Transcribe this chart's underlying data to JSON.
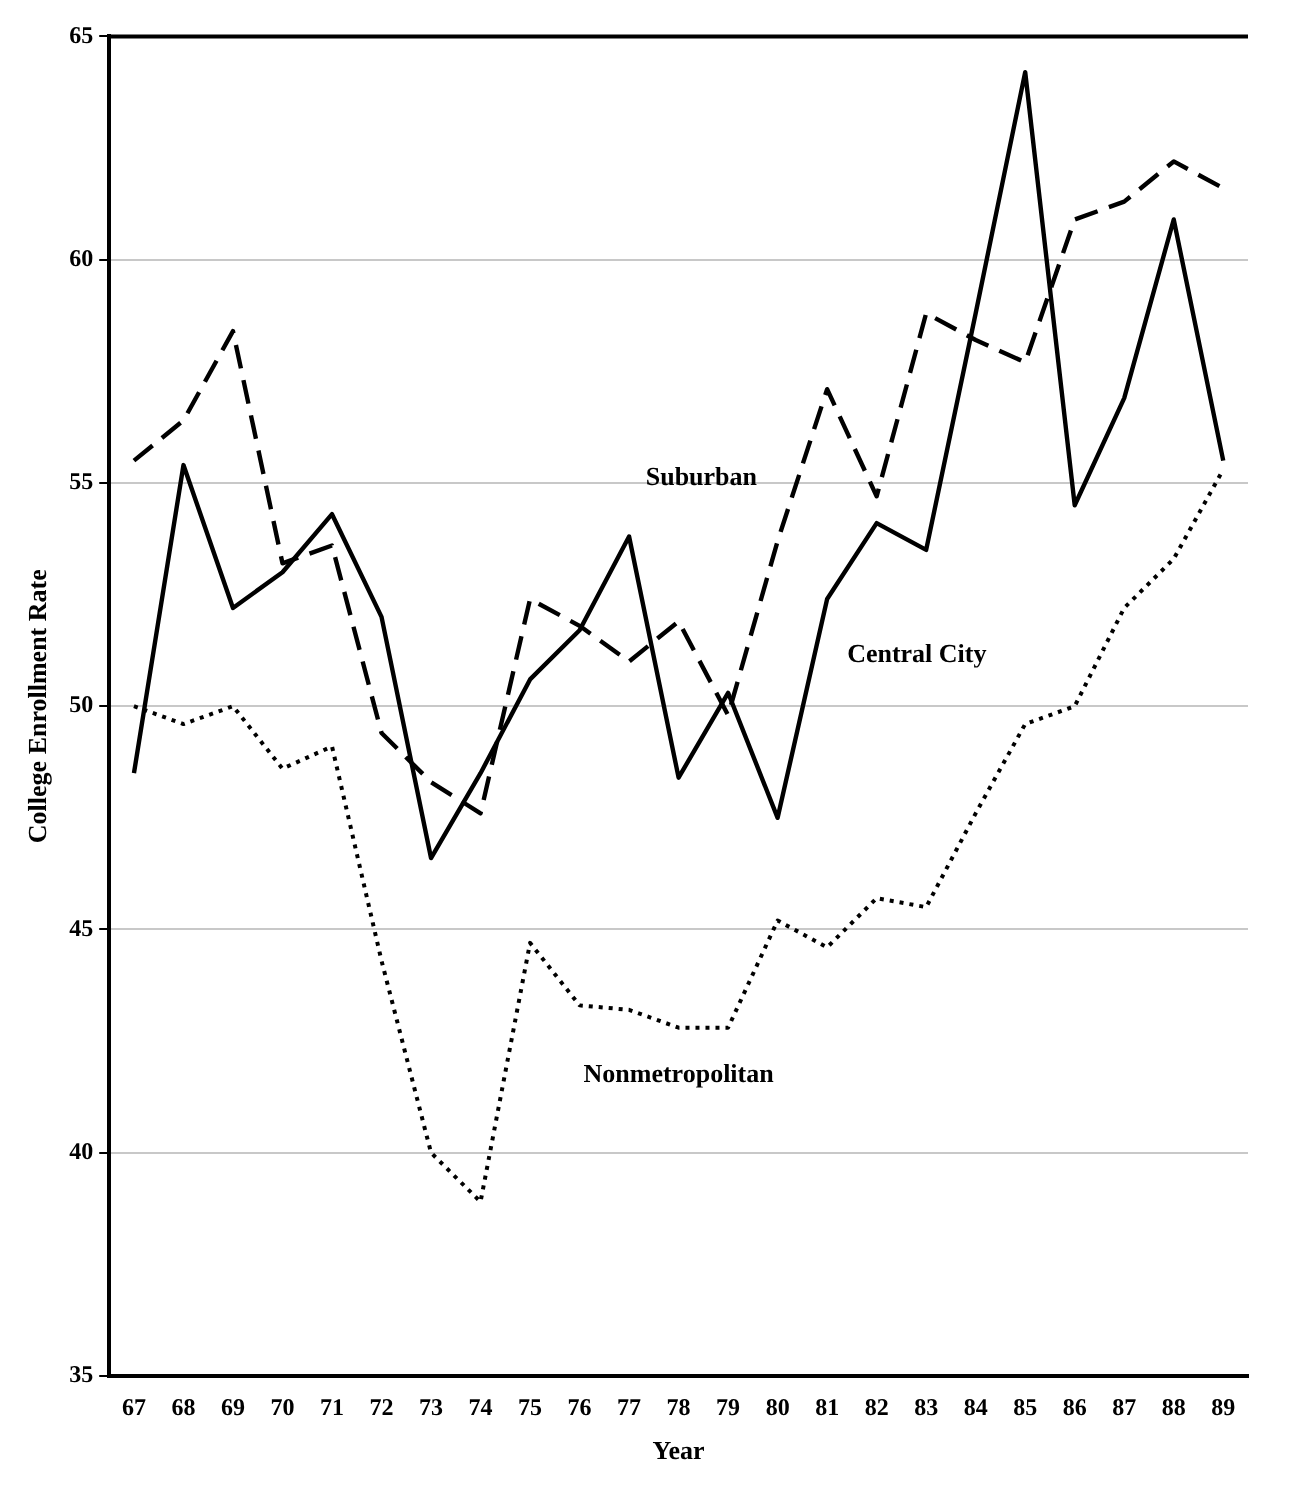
{
  "chart_data": {
    "type": "line",
    "xlabel": "Year",
    "ylabel": "College Enrollment Rate",
    "categories": [
      "67",
      "68",
      "69",
      "70",
      "71",
      "72",
      "73",
      "74",
      "75",
      "76",
      "77",
      "78",
      "79",
      "80",
      "81",
      "82",
      "83",
      "84",
      "85",
      "86",
      "87",
      "88",
      "89"
    ],
    "series": [
      {
        "name": "Suburban",
        "color": "#000000",
        "line_style": "dashed",
        "values": [
          55.5,
          56.4,
          58.4,
          53.2,
          53.6,
          49.4,
          48.3,
          47.6,
          52.4,
          51.8,
          51.0,
          51.9,
          49.8,
          53.7,
          57.1,
          54.7,
          58.8,
          58.2,
          57.7,
          60.9,
          61.3,
          62.2,
          61.6
        ]
      },
      {
        "name": "Central City",
        "color": "#000000",
        "line_style": "solid",
        "values": [
          48.5,
          55.4,
          52.2,
          53.0,
          54.3,
          52.0,
          46.6,
          48.5,
          50.6,
          51.7,
          53.8,
          48.4,
          50.3,
          47.5,
          52.4,
          54.1,
          53.5,
          58.8,
          64.2,
          54.5,
          56.9,
          60.9,
          55.5
        ]
      },
      {
        "name": "Nonmetropolitan",
        "color": "#000000",
        "line_style": "dotted",
        "values": [
          50.0,
          49.6,
          50.0,
          48.6,
          49.1,
          44.3,
          40.0,
          38.9,
          44.7,
          43.3,
          43.2,
          42.8,
          42.8,
          45.2,
          44.6,
          45.7,
          45.5,
          47.6,
          49.6,
          50.0,
          52.2,
          53.3,
          55.3
        ]
      }
    ],
    "ylim": [
      35,
      65
    ],
    "yticks": [
      35,
      40,
      45,
      50,
      55,
      60,
      65
    ],
    "grid": "y",
    "legend": false,
    "marker": "none"
  }
}
